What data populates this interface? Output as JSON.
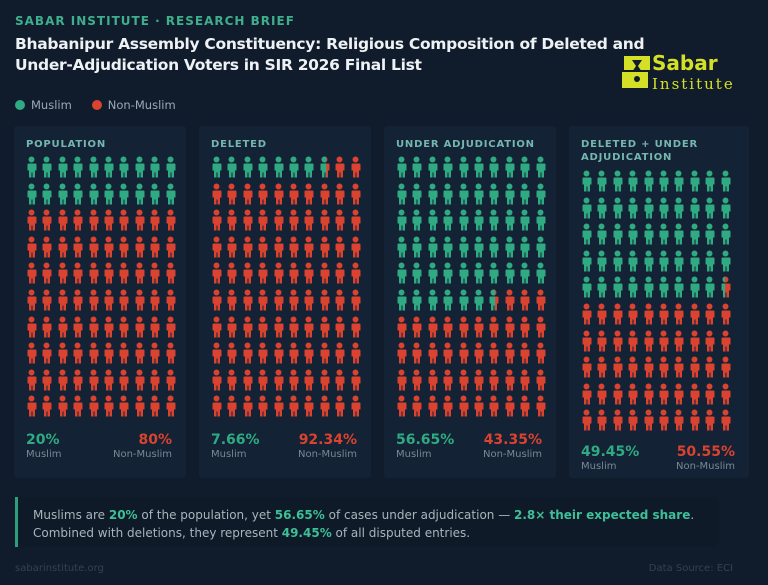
{
  "header": {
    "kicker": "SABAR INSTITUTE · RESEARCH BRIEF",
    "title": "Bhabanipur Assembly Constituency: Religious Composition of Deleted and Under-Adjudication Voters in SIR 2026 Final List",
    "logo": {
      "top_text": "Sabar",
      "bottom_text": "Institute",
      "color": "#d4e025"
    }
  },
  "legend": [
    {
      "label": "Muslim",
      "color": "#2faa82"
    },
    {
      "label": "Non-Muslim",
      "color": "#d9432f"
    }
  ],
  "colors": {
    "muslim": "#2faa82",
    "non_muslim": "#d9432f"
  },
  "chart_data": {
    "type": "pictogram",
    "title": "Bhabanipur Assembly Constituency: Religious Composition of Deleted and Under-Adjudication Voters in SIR 2026 Final List",
    "units_per_panel": 100,
    "grid": "10x10",
    "legend": [
      "Muslim",
      "Non-Muslim"
    ],
    "legend_position": "top-left",
    "panels": [
      {
        "title": "POPULATION",
        "muslim_pct": 20,
        "non_muslim_pct": 80,
        "muslim_label": "20%",
        "non_muslim_label": "80%"
      },
      {
        "title": "DELETED",
        "muslim_pct": 7.66,
        "non_muslim_pct": 92.34,
        "muslim_label": "7.66%",
        "non_muslim_label": "92.34%"
      },
      {
        "title": "UNDER ADJUDICATION",
        "muslim_pct": 56.65,
        "non_muslim_pct": 43.35,
        "muslim_label": "56.65%",
        "non_muslim_label": "43.35%"
      },
      {
        "title": "DELETED + UNDER ADJUDICATION",
        "muslim_pct": 49.45,
        "non_muslim_pct": 50.55,
        "muslim_label": "49.45%",
        "non_muslim_label": "50.55%"
      }
    ],
    "stat_labels": {
      "muslim": "Muslim",
      "non_muslim": "Non-Muslim"
    }
  },
  "callout": {
    "parts": [
      {
        "text": "Muslims are ",
        "hl": false
      },
      {
        "text": "20%",
        "hl": true
      },
      {
        "text": " of the population, yet ",
        "hl": false
      },
      {
        "text": "56.65%",
        "hl": true
      },
      {
        "text": " of cases under adjudication — ",
        "hl": false
      },
      {
        "text": "2.8× their expected share",
        "hl": true
      },
      {
        "text": ". Combined with deletions, they represent ",
        "hl": false
      },
      {
        "text": "49.45%",
        "hl": true
      },
      {
        "text": " of all disputed entries.",
        "hl": false
      }
    ]
  },
  "footer": {
    "website": "sabarinstitute.org",
    "source": "Data Source: ECI"
  }
}
